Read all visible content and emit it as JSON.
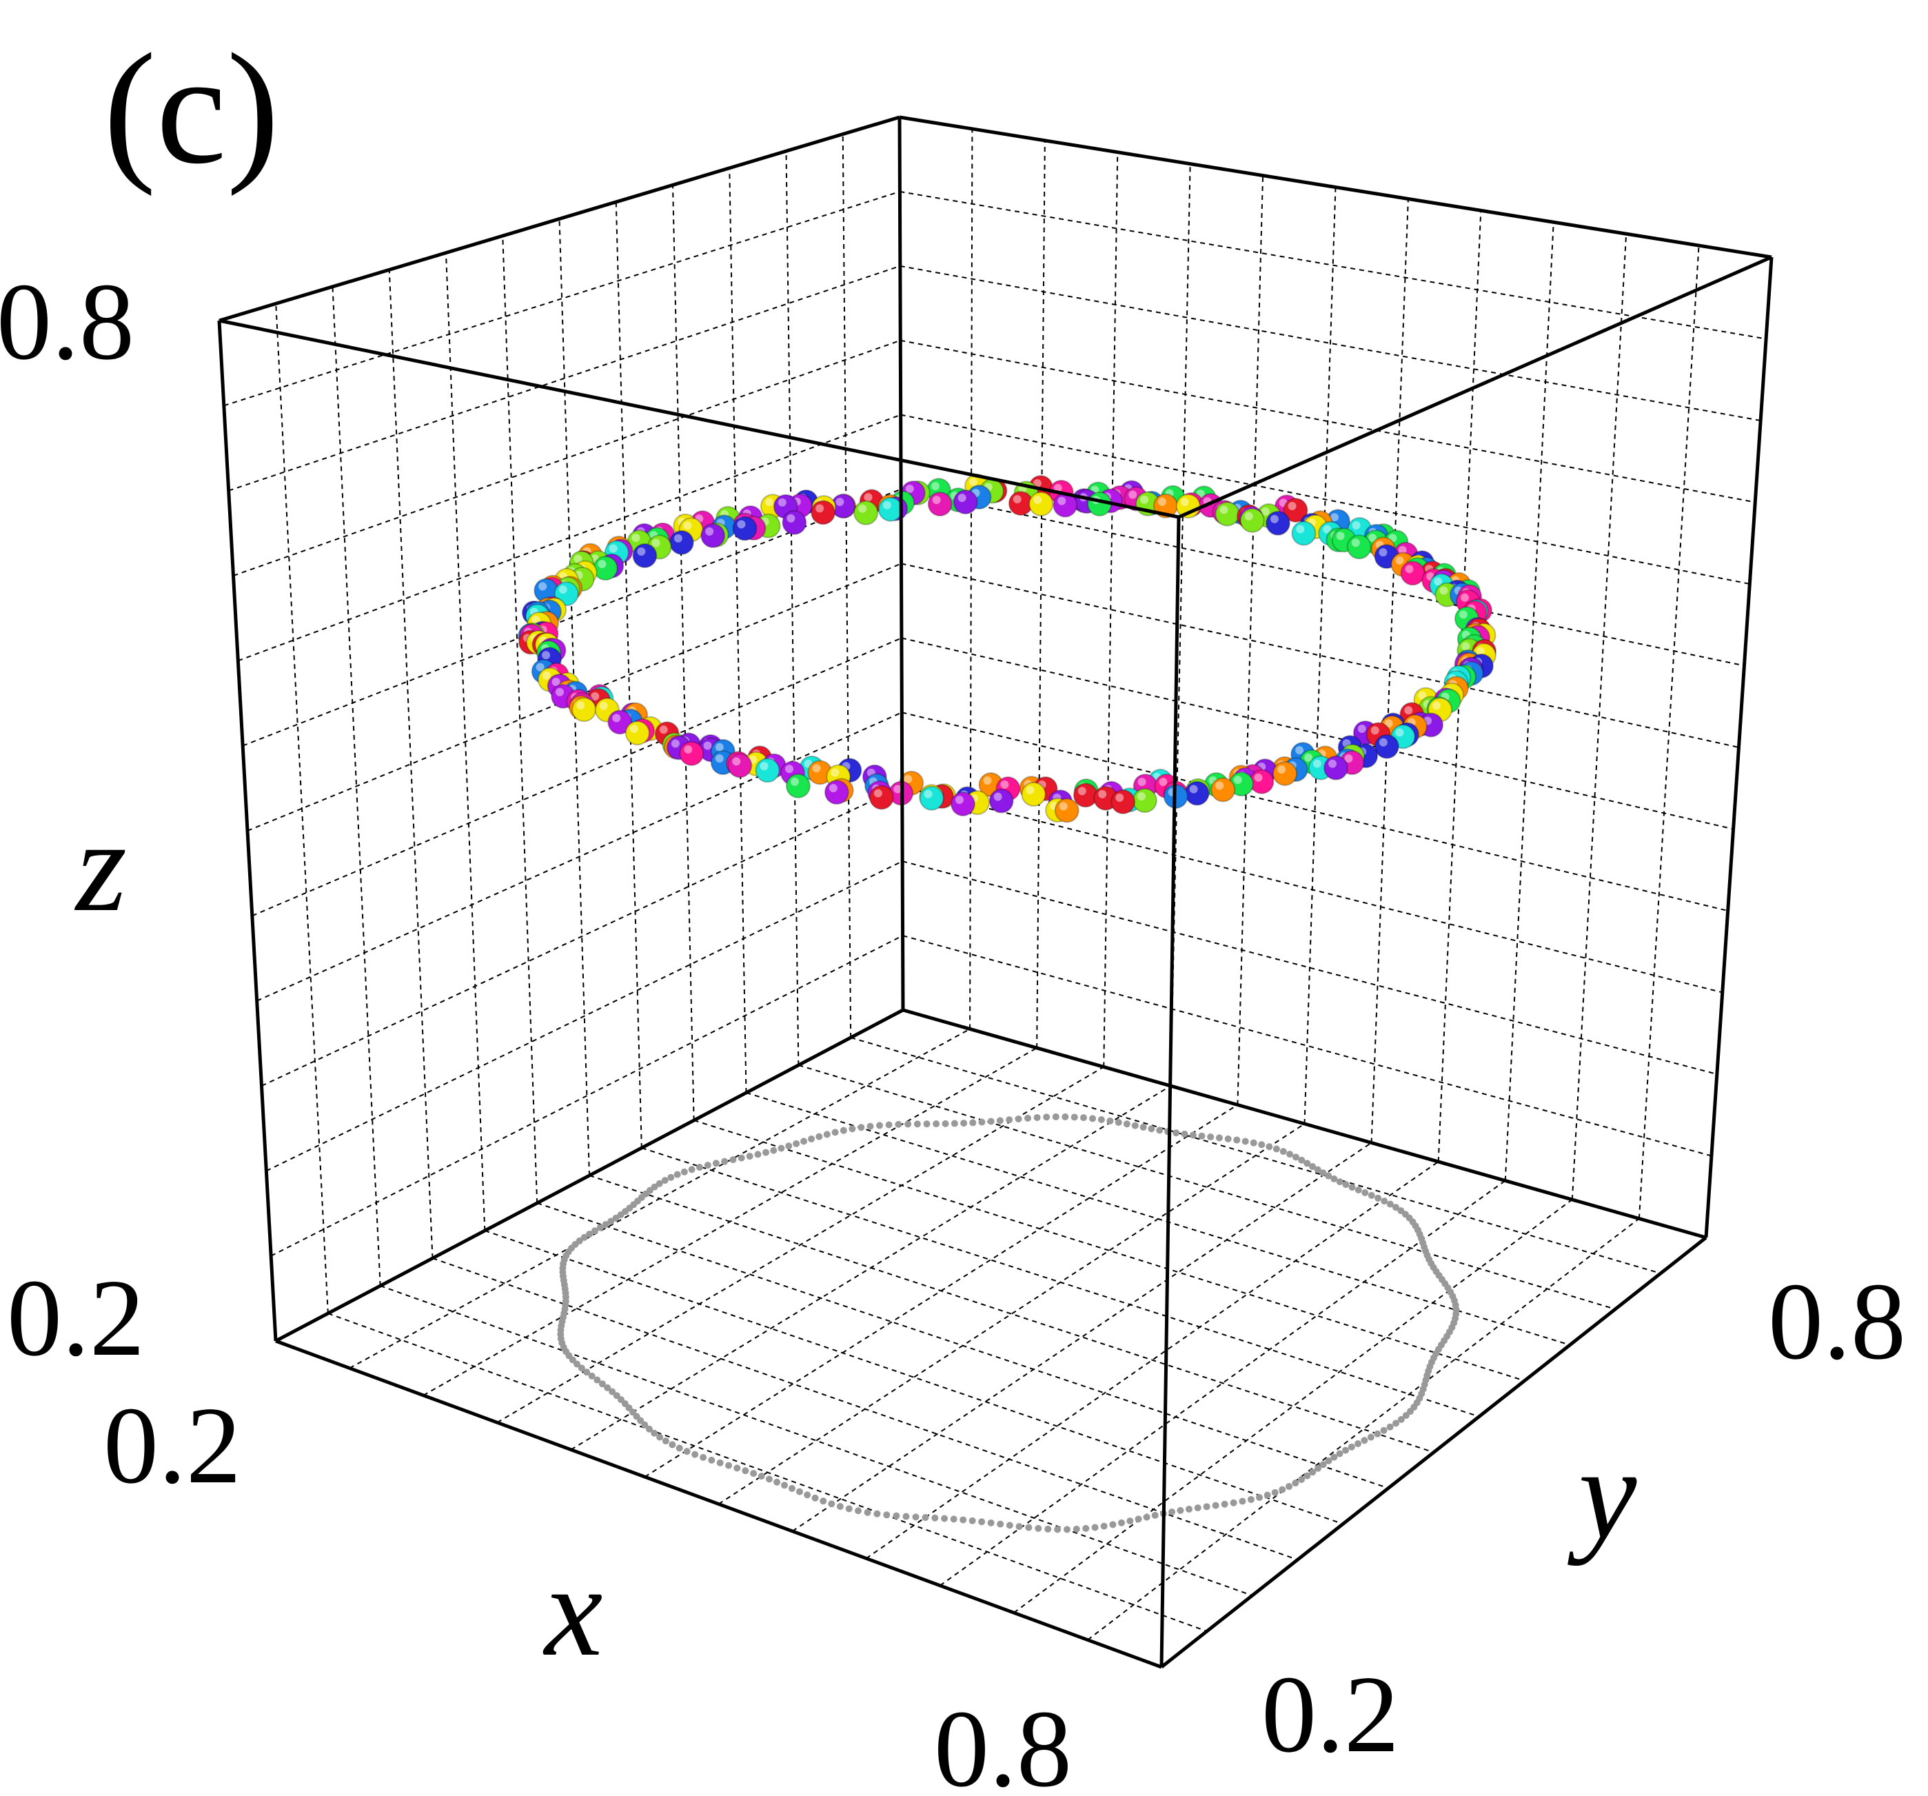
{
  "panel_label": "(c)",
  "chart_data": {
    "type": "scatter",
    "projection": "3d-box",
    "axes": {
      "x": {
        "label": "x",
        "ticks": [
          "0.2",
          "0.8"
        ],
        "range": [
          0.2,
          0.8
        ]
      },
      "y": {
        "label": "y",
        "ticks": [
          "0.2",
          "0.8"
        ],
        "range": [
          0.2,
          0.8
        ]
      },
      "z": {
        "label": "z",
        "ticks": [
          "0.2",
          "0.8"
        ],
        "range": [
          0.2,
          0.8
        ]
      }
    },
    "grid": true,
    "grid_divisions": 12,
    "ring": {
      "center": [
        0.5,
        0.5
      ],
      "radius": 0.26,
      "z": 0.6,
      "point_count": 150,
      "point_colors": [
        "#e6192b",
        "#ff8c00",
        "#f2e600",
        "#7fe619",
        "#19e64c",
        "#19e6d9",
        "#1a7fe6",
        "#2a2ad9",
        "#b319e6",
        "#e619b3",
        "#ff1493",
        "#8c19e6"
      ]
    },
    "shadow": {
      "z": 0.2,
      "color": "#999999"
    }
  }
}
